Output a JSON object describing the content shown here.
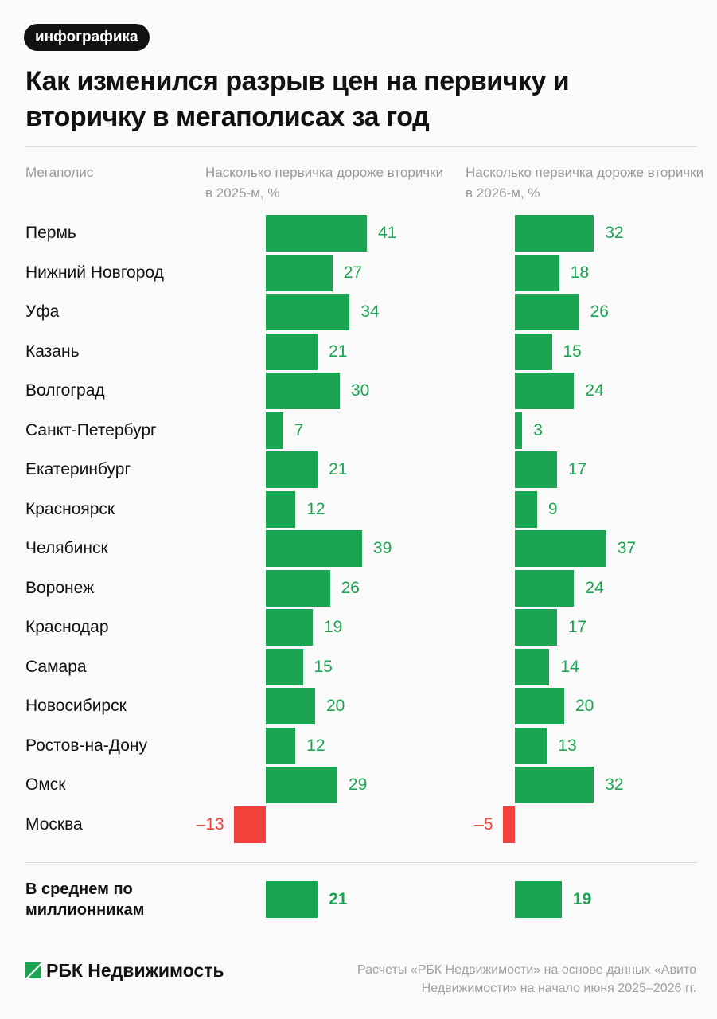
{
  "badge": "инфографика",
  "chart_data": {
    "type": "bar",
    "orientation": "horizontal",
    "title": "Как изменился разрыв цен на первичку и вторичку в мегаполисах за год",
    "category_header": "Мегаполис",
    "categories": [
      "Пермь",
      "Нижний Новгород",
      "Уфа",
      "Казань",
      "Волгоград",
      "Санкт-Петербург",
      "Екатеринбург",
      "Красноярск",
      "Челябинск",
      "Воронеж",
      "Краснодар",
      "Самара",
      "Новосибирск",
      "Ростов-на-Дону",
      "Омск",
      "Москва"
    ],
    "series": [
      {
        "name": "Насколько первичка дороже вторички в 2025-м, %",
        "color": "#1ba552",
        "negative_color": "#f2413a",
        "values": [
          41,
          27,
          34,
          21,
          30,
          7,
          21,
          12,
          39,
          26,
          19,
          15,
          20,
          12,
          29,
          -13
        ],
        "value_labels": [
          "41",
          "27",
          "34",
          "21",
          "30",
          "7",
          "21",
          "12",
          "39",
          "26",
          "19",
          "15",
          "20",
          "12",
          "29",
          "–13"
        ]
      },
      {
        "name": "Насколько первичка дороже вторички в 2026-м, %",
        "color": "#1ba552",
        "negative_color": "#f2413a",
        "values": [
          32,
          18,
          26,
          15,
          24,
          3,
          17,
          9,
          37,
          24,
          17,
          14,
          20,
          13,
          32,
          -5
        ],
        "value_labels": [
          "32",
          "18",
          "26",
          "15",
          "24",
          "3",
          "17",
          "9",
          "37",
          "24",
          "17",
          "14",
          "20",
          "13",
          "32",
          "–5"
        ]
      }
    ],
    "summary": {
      "label": "В среднем по миллионникам",
      "values": [
        21,
        19
      ]
    }
  },
  "footer": {
    "logo": "РБК Недвижимость",
    "source": "Расчеты «РБК Недвижимости» на основе данных «Авито Недвижимости» на начало июня 2025–2026 гг."
  }
}
